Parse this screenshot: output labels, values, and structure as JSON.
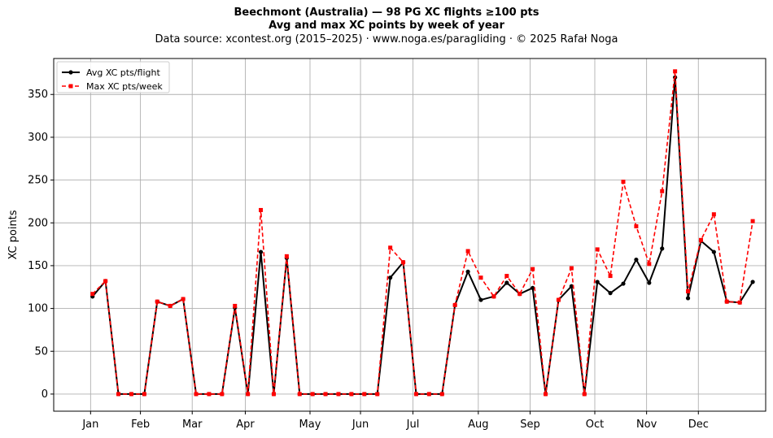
{
  "header": {
    "title": "Beechmont (Australia)  —  98 PG XC flights ≥100 pts",
    "subtitle": "Avg and max XC points by week of year",
    "source": "Data source: xcontest.org (2015–2025)  ·  www.noga.es/paragliding  ·  © 2025 Rafał Noga"
  },
  "chart_data": {
    "type": "line",
    "title": "Beechmont (Australia)  —  98 PG XC flights ≥100 pts",
    "subtitle": "Avg and max XC points by week of year",
    "xlabel": "",
    "ylabel": "XC points",
    "ylim": [
      -20,
      392
    ],
    "xlim": [
      -3,
      52
    ],
    "grid": true,
    "legend_position": "top-left",
    "x": [
      0,
      1,
      2,
      3,
      4,
      5,
      6,
      7,
      8,
      9,
      10,
      11,
      12,
      13,
      14,
      15,
      16,
      17,
      18,
      19,
      20,
      21,
      22,
      23,
      24,
      25,
      26,
      27,
      28,
      29,
      30,
      31,
      32,
      33,
      34,
      35,
      36,
      37,
      38,
      39,
      40,
      41,
      42,
      43,
      44,
      45,
      46,
      47,
      48,
      49,
      50,
      51
    ],
    "x_ticks": [
      {
        "label": "Jan",
        "x": -0.15
      },
      {
        "label": "Feb",
        "x": 3.7
      },
      {
        "label": "Mar",
        "x": 7.7
      },
      {
        "label": "Apr",
        "x": 11.8
      },
      {
        "label": "May",
        "x": 16.8
      },
      {
        "label": "Jun",
        "x": 20.7
      },
      {
        "label": "Jul",
        "x": 24.75
      },
      {
        "label": "Aug",
        "x": 29.8
      },
      {
        "label": "Sep",
        "x": 33.8
      },
      {
        "label": "Oct",
        "x": 38.8
      },
      {
        "label": "Nov",
        "x": 42.8
      },
      {
        "label": "Dec",
        "x": 46.8
      }
    ],
    "y_ticks": [
      0,
      50,
      100,
      150,
      200,
      250,
      300,
      350
    ],
    "series": [
      {
        "name": "Avg XC pts/flight",
        "color": "#000000",
        "linestyle": "solid",
        "marker": "circle",
        "values": [
          114,
          132,
          0,
          0,
          0,
          108,
          103,
          111,
          0,
          0,
          0,
          101,
          0,
          166,
          0,
          159,
          0,
          0,
          0,
          0,
          0,
          0,
          0,
          136,
          154,
          0,
          0,
          0,
          104,
          143,
          110,
          114,
          130,
          117,
          124,
          0,
          110,
          126,
          0,
          131,
          118,
          129,
          157,
          130,
          170,
          370,
          112,
          179,
          166,
          108,
          107,
          131
        ]
      },
      {
        "name": "Max XC pts/week",
        "color": "#ff0000",
        "linestyle": "dashed",
        "marker": "square",
        "values": [
          117,
          132,
          0,
          0,
          0,
          108,
          103,
          111,
          0,
          0,
          0,
          103,
          0,
          215,
          0,
          161,
          0,
          0,
          0,
          0,
          0,
          0,
          0,
          171,
          154,
          0,
          0,
          0,
          104,
          167,
          136,
          114,
          138,
          117,
          146,
          0,
          110,
          147,
          0,
          169,
          138,
          248,
          196,
          152,
          237,
          377,
          120,
          180,
          210,
          108,
          107,
          202
        ]
      }
    ]
  }
}
